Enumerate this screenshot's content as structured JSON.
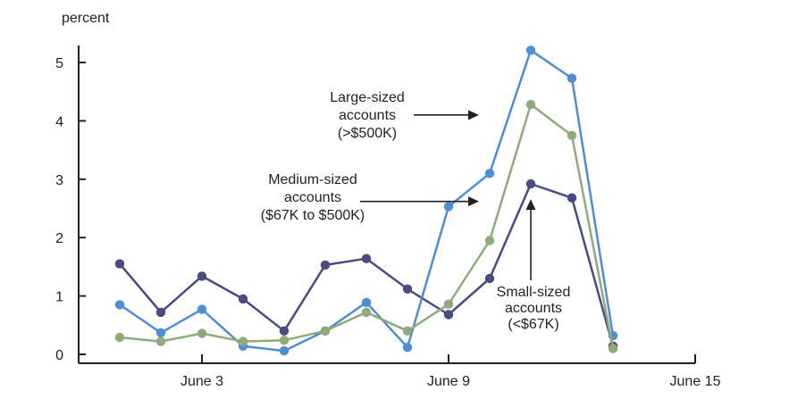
{
  "chart_data": {
    "type": "line",
    "ylabel": "percent",
    "ylim": [
      0,
      5
    ],
    "yticks": [
      0,
      1,
      2,
      3,
      4,
      5
    ],
    "x": [
      "2020-06-01",
      "2020-06-02",
      "2020-06-03",
      "2020-06-04",
      "2020-06-05",
      "2020-06-06",
      "2020-06-07",
      "2020-06-08",
      "2020-06-09",
      "2020-06-10",
      "2020-06-11",
      "2020-06-12",
      "2020-06-13"
    ],
    "xticks": [
      {
        "date": "2020-06-03",
        "label": "June 3"
      },
      {
        "date": "2020-06-09",
        "label": "June 9"
      },
      {
        "date": "2020-06-15",
        "label": "June 15"
      }
    ],
    "xlim": [
      "2020-05-31",
      "2020-06-15"
    ],
    "series": [
      {
        "key": "small",
        "color": "#4a4a85",
        "values": [
          1.55,
          0.72,
          1.34,
          0.95,
          0.4,
          1.53,
          1.64,
          1.12,
          0.68,
          1.3,
          2.92,
          2.68,
          0.14
        ]
      },
      {
        "key": "large",
        "color": "#4d8fd6",
        "values": [
          0.85,
          0.37,
          0.77,
          0.14,
          0.06,
          0.4,
          0.89,
          0.12,
          2.53,
          3.1,
          5.21,
          4.73,
          0.32
        ]
      },
      {
        "key": "medium",
        "color": "#8fab7a",
        "values": [
          0.29,
          0.22,
          0.36,
          0.22,
          0.24,
          0.4,
          0.72,
          0.4,
          0.86,
          1.95,
          4.28,
          3.75,
          0.1
        ]
      }
    ],
    "annotations": [
      {
        "key": "large",
        "lines": [
          "Large-sized",
          "accounts",
          "(>$500K)"
        ],
        "target_date": "2020-06-10",
        "target_value": 4.1
      },
      {
        "key": "medium",
        "lines": [
          "Medium-sized",
          "accounts",
          "($67K to $500K)"
        ],
        "target_date": "2020-06-10",
        "target_value": 2.62
      },
      {
        "key": "small",
        "lines": [
          "Small-sized",
          "accounts",
          "(<$67K)"
        ],
        "target_date": "2020-06-11",
        "target_value": 2.72
      }
    ],
    "grid": false,
    "legend": "none"
  }
}
